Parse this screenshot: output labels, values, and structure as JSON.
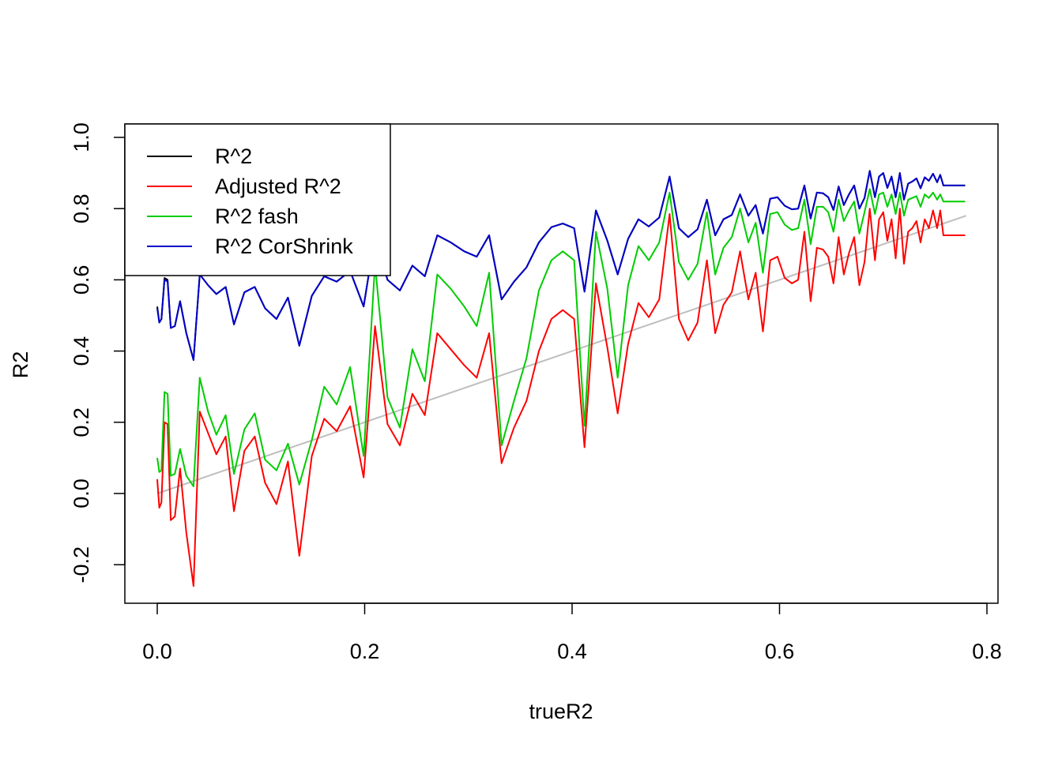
{
  "chart_data": {
    "type": "line",
    "title": "",
    "xlabel": "trueR2",
    "ylabel": "R2",
    "xlim": [
      0.0,
      0.8
    ],
    "ylim": [
      -0.2,
      1.0
    ],
    "xticks": [
      "0.0",
      "0.2",
      "0.4",
      "0.6",
      "0.8"
    ],
    "yticks": [
      "-0.2",
      "0.0",
      "0.2",
      "0.4",
      "0.6",
      "0.8",
      "1.0"
    ],
    "grid": false,
    "legend_position": "top-left",
    "x": [
      0.0,
      0.002,
      0.004,
      0.007,
      0.01,
      0.013,
      0.017,
      0.022,
      0.028,
      0.035,
      0.041,
      0.049,
      0.057,
      0.066,
      0.074,
      0.084,
      0.094,
      0.104,
      0.115,
      0.126,
      0.137,
      0.149,
      0.161,
      0.173,
      0.186,
      0.199,
      0.21,
      0.222,
      0.234,
      0.246,
      0.258,
      0.27,
      0.283,
      0.296,
      0.308,
      0.32,
      0.332,
      0.344,
      0.356,
      0.368,
      0.38,
      0.391,
      0.402,
      0.412,
      0.423,
      0.434,
      0.444,
      0.454,
      0.464,
      0.474,
      0.484,
      0.494,
      0.503,
      0.512,
      0.521,
      0.53,
      0.538,
      0.546,
      0.554,
      0.562,
      0.57,
      0.577,
      0.584,
      0.591,
      0.598,
      0.605,
      0.612,
      0.618,
      0.624,
      0.63,
      0.636,
      0.642,
      0.647,
      0.652,
      0.657,
      0.662,
      0.667,
      0.672,
      0.677,
      0.682,
      0.687,
      0.692,
      0.696,
      0.7,
      0.704,
      0.708,
      0.712,
      0.716,
      0.72,
      0.724,
      0.728,
      0.732,
      0.736,
      0.74,
      0.744,
      0.748,
      0.752,
      0.755,
      0.758,
      0.761,
      0.764,
      0.767,
      0.77,
      0.773,
      0.776,
      0.779
    ],
    "series": [
      {
        "name": "R^2",
        "color": "#000000",
        "values": [
          0.525,
          0.48,
          0.49,
          0.605,
          0.6,
          0.465,
          0.47,
          0.54,
          0.45,
          0.375,
          0.615,
          0.585,
          0.56,
          0.58,
          0.475,
          0.565,
          0.58,
          0.52,
          0.49,
          0.55,
          0.415,
          0.555,
          0.61,
          0.595,
          0.625,
          0.525,
          0.725,
          0.6,
          0.57,
          0.64,
          0.61,
          0.725,
          0.705,
          0.68,
          0.665,
          0.725,
          0.545,
          0.595,
          0.635,
          0.705,
          0.748,
          0.758,
          0.745,
          0.567,
          0.795,
          0.71,
          0.615,
          0.715,
          0.77,
          0.75,
          0.775,
          0.89,
          0.745,
          0.72,
          0.742,
          0.825,
          0.725,
          0.77,
          0.782,
          0.84,
          0.78,
          0.81,
          0.73,
          0.828,
          0.832,
          0.808,
          0.798,
          0.8,
          0.865,
          0.772,
          0.845,
          0.843,
          0.832,
          0.796,
          0.862,
          0.81,
          0.84,
          0.865,
          0.8,
          0.83,
          0.906,
          0.832,
          0.89,
          0.9,
          0.858,
          0.89,
          0.832,
          0.9,
          0.825,
          0.87,
          0.876,
          0.885,
          0.857,
          0.888,
          0.878,
          0.898,
          0.874,
          0.895,
          0.865,
          0.865,
          0.865,
          0.865,
          0.865,
          0.865,
          0.865,
          0.865
        ]
      },
      {
        "name": "Adjusted R^2",
        "color": "#ff0000",
        "values": [
          0.04,
          -0.04,
          -0.025,
          0.2,
          0.195,
          -0.075,
          -0.065,
          0.07,
          -0.11,
          -0.26,
          0.23,
          0.17,
          0.11,
          0.16,
          -0.05,
          0.12,
          0.16,
          0.03,
          -0.03,
          0.09,
          -0.175,
          0.105,
          0.21,
          0.175,
          0.245,
          0.045,
          0.47,
          0.195,
          0.135,
          0.28,
          0.22,
          0.45,
          0.405,
          0.36,
          0.325,
          0.45,
          0.085,
          0.185,
          0.26,
          0.4,
          0.49,
          0.515,
          0.49,
          0.13,
          0.59,
          0.41,
          0.225,
          0.42,
          0.535,
          0.495,
          0.545,
          0.785,
          0.49,
          0.43,
          0.48,
          0.655,
          0.45,
          0.53,
          0.565,
          0.68,
          0.545,
          0.62,
          0.455,
          0.655,
          0.665,
          0.605,
          0.59,
          0.6,
          0.735,
          0.54,
          0.69,
          0.685,
          0.665,
          0.59,
          0.72,
          0.615,
          0.675,
          0.72,
          0.585,
          0.65,
          0.8,
          0.655,
          0.77,
          0.79,
          0.71,
          0.77,
          0.66,
          0.8,
          0.645,
          0.735,
          0.745,
          0.765,
          0.705,
          0.77,
          0.745,
          0.795,
          0.745,
          0.795,
          0.725,
          0.725,
          0.725,
          0.725,
          0.725,
          0.725,
          0.725,
          0.725
        ]
      },
      {
        "name": "R^2 fash",
        "color": "#00cc00",
        "values": [
          0.1,
          0.06,
          0.065,
          0.285,
          0.28,
          0.05,
          0.055,
          0.125,
          0.05,
          0.02,
          0.325,
          0.23,
          0.165,
          0.22,
          0.055,
          0.18,
          0.225,
          0.095,
          0.065,
          0.14,
          0.025,
          0.15,
          0.3,
          0.25,
          0.355,
          0.105,
          0.645,
          0.27,
          0.185,
          0.405,
          0.315,
          0.615,
          0.575,
          0.525,
          0.47,
          0.62,
          0.135,
          0.26,
          0.38,
          0.57,
          0.655,
          0.68,
          0.655,
          0.19,
          0.735,
          0.575,
          0.325,
          0.585,
          0.695,
          0.655,
          0.705,
          0.845,
          0.65,
          0.6,
          0.645,
          0.79,
          0.615,
          0.69,
          0.72,
          0.8,
          0.705,
          0.76,
          0.62,
          0.785,
          0.79,
          0.755,
          0.74,
          0.745,
          0.825,
          0.7,
          0.805,
          0.805,
          0.79,
          0.735,
          0.825,
          0.765,
          0.795,
          0.82,
          0.73,
          0.79,
          0.855,
          0.785,
          0.84,
          0.845,
          0.805,
          0.84,
          0.785,
          0.845,
          0.78,
          0.825,
          0.83,
          0.835,
          0.805,
          0.84,
          0.83,
          0.845,
          0.825,
          0.84,
          0.82,
          0.82,
          0.82,
          0.82,
          0.82,
          0.82,
          0.82,
          0.82
        ]
      },
      {
        "name": "R^2 CorShrink",
        "color": "#0000cc",
        "values": [
          0.52,
          0.48,
          0.49,
          0.6,
          0.595,
          0.465,
          0.47,
          0.54,
          0.45,
          0.375,
          0.615,
          0.585,
          0.56,
          0.58,
          0.475,
          0.565,
          0.58,
          0.52,
          0.49,
          0.55,
          0.415,
          0.555,
          0.61,
          0.595,
          0.625,
          0.525,
          0.725,
          0.6,
          0.57,
          0.64,
          0.61,
          0.725,
          0.705,
          0.68,
          0.665,
          0.725,
          0.545,
          0.595,
          0.635,
          0.705,
          0.748,
          0.758,
          0.745,
          0.567,
          0.795,
          0.71,
          0.615,
          0.715,
          0.77,
          0.75,
          0.775,
          0.89,
          0.745,
          0.72,
          0.742,
          0.825,
          0.725,
          0.77,
          0.782,
          0.84,
          0.78,
          0.81,
          0.73,
          0.828,
          0.832,
          0.808,
          0.798,
          0.8,
          0.865,
          0.772,
          0.845,
          0.843,
          0.832,
          0.796,
          0.862,
          0.81,
          0.84,
          0.865,
          0.8,
          0.83,
          0.906,
          0.832,
          0.89,
          0.9,
          0.858,
          0.89,
          0.832,
          0.9,
          0.825,
          0.87,
          0.876,
          0.885,
          0.857,
          0.888,
          0.878,
          0.898,
          0.874,
          0.895,
          0.865,
          0.865,
          0.865,
          0.865,
          0.865,
          0.865,
          0.865,
          0.865
        ]
      }
    ],
    "reference_line": {
      "color": "#bebebe",
      "from": [
        0.0,
        0.0
      ],
      "to": [
        0.78,
        0.78
      ]
    }
  }
}
